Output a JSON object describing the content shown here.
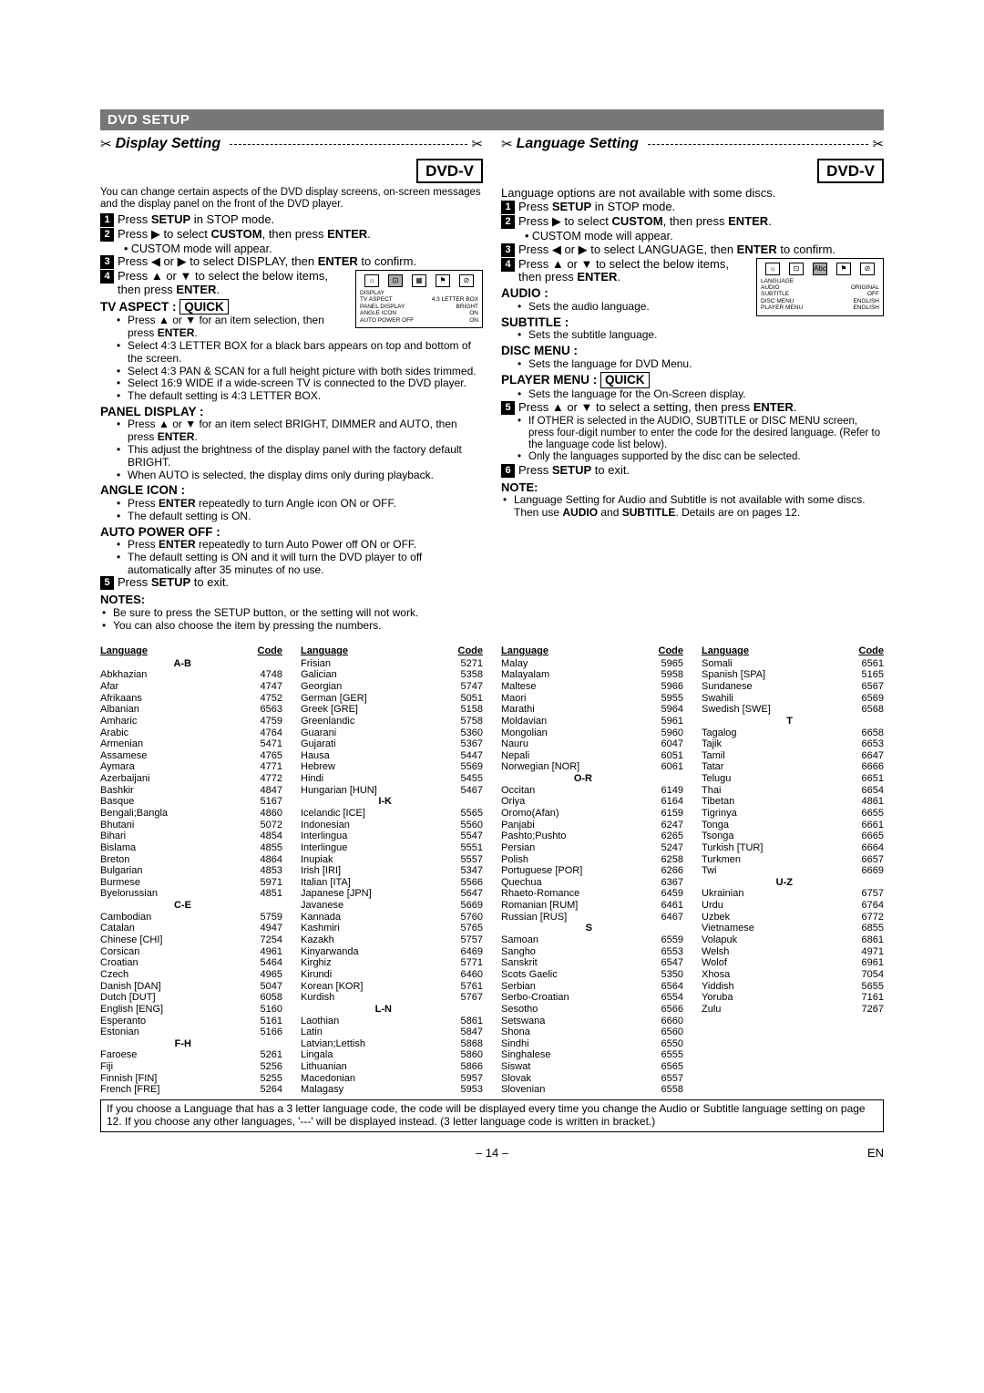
{
  "header": "DVD SETUP",
  "left": {
    "title": "Display Setting",
    "badge": "DVD-V",
    "intro": "You can change certain aspects of the DVD display screens, on-screen messages and the display panel on the front of the DVD player.",
    "steps": [
      "Press <b>SETUP</b> in STOP mode.",
      "Press <span class='tri'>▶</span> to select <b>CUSTOM</b>, then press <b>ENTER</b>.",
      "Press <span class='tri'>◀</span> or <span class='tri'>▶</span> to select DISPLAY, then <b>ENTER</b> to confirm.",
      "Press <span class='tri'>▲</span> or <span class='tri'>▼</span> to select the below items, then press <b>ENTER</b>."
    ],
    "step2_sub": "• CUSTOM mode will appear.",
    "tvaspect_head": "TV ASPECT :",
    "quick": "QUICK",
    "tvaspect_items": [
      "Press <span class='tri'>▲</span> or <span class='tri'>▼</span> for an item selection, then press <b>ENTER</b>.",
      "Select 4:3 LETTER BOX for a black bars appears on top and bottom of the screen.",
      "Select 4:3 PAN & SCAN for a full height picture with both sides trimmed.",
      "Select 16:9 WIDE if a wide-screen TV is connected to the DVD player.",
      "The default setting is 4:3 LETTER BOX."
    ],
    "panel_head": "PANEL DISPLAY :",
    "panel_items": [
      "Press <span class='tri'>▲</span> or <span class='tri'>▼</span>  for an item select BRIGHT, DIMMER and AUTO, then press <b>ENTER</b>.",
      "This adjust the brightness of the display panel with the factory default BRIGHT.",
      "When AUTO is selected, the display dims only during playback."
    ],
    "angle_head": "ANGLE ICON :",
    "angle_items": [
      "Press <b>ENTER</b> repeatedly to turn Angle icon ON or OFF.",
      "The default setting is ON."
    ],
    "autopw_head": "AUTO POWER OFF :",
    "autopw_items": [
      "Press <b>ENTER</b> repeatedly to turn Auto Power off ON or OFF.",
      "The default setting is ON and it will turn the DVD player to off automatically after 35 minutes of no use."
    ],
    "step5": "Press <b>SETUP</b> to exit.",
    "notes_head": "NOTES:",
    "notes": [
      "Be sure to press the SETUP button, or the setting will not work.",
      "You can also choose the item by pressing the numbers."
    ],
    "osd": {
      "rows": [
        [
          "DISPLAY",
          ""
        ],
        [
          "TV ASPECT",
          "4:3 LETTER BOX"
        ],
        [
          "PANEL DISPLAY",
          "BRIGHT"
        ],
        [
          "ANGLE ICON",
          "ON"
        ],
        [
          "AUTO POWER OFF",
          "ON"
        ]
      ]
    }
  },
  "right": {
    "title": "Language Setting",
    "badge": "DVD-V",
    "intro": "Language options are not available with some discs.",
    "steps": [
      "Press <b>SETUP</b> in STOP mode.",
      "Press <span class='tri'>▶</span> to select <b>CUSTOM</b>, then press <b>ENTER</b>.",
      "Press <span class='tri'>◀</span> or <span class='tri'>▶</span> to select LANGUAGE, then <b>ENTER</b> to confirm.",
      "Press <span class='tri'>▲</span> or <span class='tri'>▼</span> to select the below items, then press <b>ENTER</b>."
    ],
    "step2_sub": "• CUSTOM mode will appear.",
    "audio_head": "AUDIO :",
    "audio_item": "Sets the audio language.",
    "subtitle_head": "SUBTITLE :",
    "subtitle_item": "Sets the subtitle language.",
    "disc_head": "DISC MENU :",
    "disc_item": "Sets the language for DVD Menu.",
    "player_head": "PLAYER MENU :",
    "player_item": "Sets the language for the On-Screen display.",
    "step5": "Press <span class='tri'>▲</span> or <span class='tri'>▼</span> to select a setting, then press <b>ENTER</b>.",
    "step5_subs": [
      "If OTHER is selected in the AUDIO, SUBTITLE or DISC MENU screen, press four-digit number to enter the code for the desired language. (Refer to the language code list below).",
      "Only the languages supported by the disc can be selected."
    ],
    "step6": "Press <b>SETUP</b> to exit.",
    "note_head": "NOTE:",
    "note_text": "Language Setting for Audio and Subtitle is not available with some discs. Then use <b>AUDIO</b> and <b>SUBTITLE</b>. Details are on pages 12.",
    "osd": {
      "rows": [
        [
          "LANGUAGE",
          ""
        ],
        [
          "AUDIO",
          "ORIGINAL"
        ],
        [
          "SUBTITLE",
          "OFF"
        ],
        [
          "DISC MENU",
          "ENGLISH"
        ],
        [
          "PLAYER MENU",
          "ENGLISH"
        ]
      ]
    }
  },
  "lang_table": {
    "col1": [
      {
        "g": "A-B"
      },
      {
        "l": "Abkhazian",
        "c": "4748"
      },
      {
        "l": "Afar",
        "c": "4747"
      },
      {
        "l": "Afrikaans",
        "c": "4752"
      },
      {
        "l": "Albanian",
        "c": "6563"
      },
      {
        "l": "Amharic",
        "c": "4759"
      },
      {
        "l": "Arabic",
        "c": "4764"
      },
      {
        "l": "Armenian",
        "c": "5471"
      },
      {
        "l": "Assamese",
        "c": "4765"
      },
      {
        "l": "Aymara",
        "c": "4771"
      },
      {
        "l": "Azerbaijani",
        "c": "4772"
      },
      {
        "l": "Bashkir",
        "c": "4847"
      },
      {
        "l": "Basque",
        "c": "5167"
      },
      {
        "l": "Bengali;Bangla",
        "c": "4860"
      },
      {
        "l": "Bhutani",
        "c": "5072"
      },
      {
        "l": "Bihari",
        "c": "4854"
      },
      {
        "l": "Bislama",
        "c": "4855"
      },
      {
        "l": "Breton",
        "c": "4864"
      },
      {
        "l": "Bulgarian",
        "c": "4853"
      },
      {
        "l": "Burmese",
        "c": "5971"
      },
      {
        "l": "Byelorussian",
        "c": "4851"
      },
      {
        "g": "C-E"
      },
      {
        "l": "Cambodian",
        "c": "5759"
      },
      {
        "l": "Catalan",
        "c": "4947"
      },
      {
        "l": "Chinese [CHI]",
        "c": "7254"
      },
      {
        "l": "Corsican",
        "c": "4961"
      },
      {
        "l": "Croatian",
        "c": "5464"
      },
      {
        "l": "Czech",
        "c": "4965"
      },
      {
        "l": "Danish [DAN]",
        "c": "5047"
      },
      {
        "l": "Dutch [DUT]",
        "c": "6058"
      },
      {
        "l": "English [ENG]",
        "c": "5160"
      },
      {
        "l": "Esperanto",
        "c": "5161"
      },
      {
        "l": "Estonian",
        "c": "5166"
      },
      {
        "g": "F-H"
      },
      {
        "l": "Faroese",
        "c": "5261"
      },
      {
        "l": "Fiji",
        "c": "5256"
      },
      {
        "l": "Finnish [FIN]",
        "c": "5255"
      },
      {
        "l": "French [FRE]",
        "c": "5264"
      }
    ],
    "col2": [
      {
        "l": "Frisian",
        "c": "5271"
      },
      {
        "l": "Galician",
        "c": "5358"
      },
      {
        "l": "Georgian",
        "c": "5747"
      },
      {
        "l": "German [GER]",
        "c": "5051"
      },
      {
        "l": "Greek [GRE]",
        "c": "5158"
      },
      {
        "l": "Greenlandic",
        "c": "5758"
      },
      {
        "l": "Guarani",
        "c": "5360"
      },
      {
        "l": "Gujarati",
        "c": "5367"
      },
      {
        "l": "Hausa",
        "c": "5447"
      },
      {
        "l": "Hebrew",
        "c": "5569"
      },
      {
        "l": "Hindi",
        "c": "5455"
      },
      {
        "l": "Hungarian [HUN]",
        "c": "5467"
      },
      {
        "g": "I-K"
      },
      {
        "l": "Icelandic [ICE]",
        "c": "5565"
      },
      {
        "l": "Indonesian",
        "c": "5560"
      },
      {
        "l": "Interlingua",
        "c": "5547"
      },
      {
        "l": "Interlingue",
        "c": "5551"
      },
      {
        "l": "Inupiak",
        "c": "5557"
      },
      {
        "l": "Irish [IRI]",
        "c": "5347"
      },
      {
        "l": "Italian [ITA]",
        "c": "5566"
      },
      {
        "l": "Japanese [JPN]",
        "c": "5647"
      },
      {
        "l": "Javanese",
        "c": "5669"
      },
      {
        "l": "Kannada",
        "c": "5760"
      },
      {
        "l": "Kashmiri",
        "c": "5765"
      },
      {
        "l": "Kazakh",
        "c": "5757"
      },
      {
        "l": "Kinyarwanda",
        "c": "6469"
      },
      {
        "l": "Kirghiz",
        "c": "5771"
      },
      {
        "l": "Kirundi",
        "c": "6460"
      },
      {
        "l": "Korean [KOR]",
        "c": "5761"
      },
      {
        "l": "Kurdish",
        "c": "5767"
      },
      {
        "g": "L-N"
      },
      {
        "l": "Laothian",
        "c": "5861"
      },
      {
        "l": "Latin",
        "c": "5847"
      },
      {
        "l": "Latvian;Lettish",
        "c": "5868"
      },
      {
        "l": "Lingala",
        "c": "5860"
      },
      {
        "l": "Lithuanian",
        "c": "5866"
      },
      {
        "l": "Macedonian",
        "c": "5957"
      },
      {
        "l": "Malagasy",
        "c": "5953"
      }
    ],
    "col3": [
      {
        "l": "Malay",
        "c": "5965"
      },
      {
        "l": "Malayalam",
        "c": "5958"
      },
      {
        "l": "Maltese",
        "c": "5966"
      },
      {
        "l": "Maori",
        "c": "5955"
      },
      {
        "l": "Marathi",
        "c": "5964"
      },
      {
        "l": "Moldavian",
        "c": "5961"
      },
      {
        "l": "Mongolian",
        "c": "5960"
      },
      {
        "l": "Nauru",
        "c": "6047"
      },
      {
        "l": "Nepali",
        "c": "6051"
      },
      {
        "l": "Norwegian [NOR]",
        "c": "6061"
      },
      {
        "g": "O-R"
      },
      {
        "l": "Occitan",
        "c": "6149"
      },
      {
        "l": "Oriya",
        "c": "6164"
      },
      {
        "l": "Oromo(Afan)",
        "c": "6159"
      },
      {
        "l": "Panjabi",
        "c": "6247"
      },
      {
        "l": "Pashto;Pushto",
        "c": "6265"
      },
      {
        "l": "Persian",
        "c": "5247"
      },
      {
        "l": "Polish",
        "c": "6258"
      },
      {
        "l": "Portuguese [POR]",
        "c": "6266"
      },
      {
        "l": "Quechua",
        "c": "6367"
      },
      {
        "l": "Rhaeto-Romance",
        "c": "6459"
      },
      {
        "l": "Romanian [RUM]",
        "c": "6461"
      },
      {
        "l": "Russian [RUS]",
        "c": "6467"
      },
      {
        "g": "S"
      },
      {
        "l": "Samoan",
        "c": "6559"
      },
      {
        "l": "Sangho",
        "c": "6553"
      },
      {
        "l": "Sanskrit",
        "c": "6547"
      },
      {
        "l": "Scots Gaelic",
        "c": "5350"
      },
      {
        "l": "Serbian",
        "c": "6564"
      },
      {
        "l": "Serbo-Croatian",
        "c": "6554"
      },
      {
        "l": "Sesotho",
        "c": "6566"
      },
      {
        "l": "Setswana",
        "c": "6660"
      },
      {
        "l": "Shona",
        "c": "6560"
      },
      {
        "l": "Sindhi",
        "c": "6550"
      },
      {
        "l": "Singhalese",
        "c": "6555"
      },
      {
        "l": "Siswat",
        "c": "6565"
      },
      {
        "l": "Slovak",
        "c": "6557"
      },
      {
        "l": "Slovenian",
        "c": "6558"
      }
    ],
    "col4": [
      {
        "l": "Somali",
        "c": "6561"
      },
      {
        "l": "Spanish [SPA]",
        "c": "5165"
      },
      {
        "l": "Sundanese",
        "c": "6567"
      },
      {
        "l": "Swahili",
        "c": "6569"
      },
      {
        "l": "Swedish [SWE]",
        "c": "6568"
      },
      {
        "g": "T"
      },
      {
        "l": "Tagalog",
        "c": "6658"
      },
      {
        "l": "Tajik",
        "c": "6653"
      },
      {
        "l": "Tamil",
        "c": "6647"
      },
      {
        "l": "Tatar",
        "c": "6666"
      },
      {
        "l": "Telugu",
        "c": "6651"
      },
      {
        "l": "Thai",
        "c": "6654"
      },
      {
        "l": "Tibetan",
        "c": "4861"
      },
      {
        "l": "Tigrinya",
        "c": "6655"
      },
      {
        "l": "Tonga",
        "c": "6661"
      },
      {
        "l": "Tsonga",
        "c": "6665"
      },
      {
        "l": "Turkish [TUR]",
        "c": "6664"
      },
      {
        "l": "Turkmen",
        "c": "6657"
      },
      {
        "l": "Twi",
        "c": "6669"
      },
      {
        "g": "U-Z"
      },
      {
        "l": "Ukrainian",
        "c": "6757"
      },
      {
        "l": "Urdu",
        "c": "6764"
      },
      {
        "l": "Uzbek",
        "c": "6772"
      },
      {
        "l": "Vietnamese",
        "c": "6855"
      },
      {
        "l": "Volapuk",
        "c": "6861"
      },
      {
        "l": "Welsh",
        "c": "4971"
      },
      {
        "l": "Wolof",
        "c": "6961"
      },
      {
        "l": "Xhosa",
        "c": "7054"
      },
      {
        "l": "Yiddish",
        "c": "5655"
      },
      {
        "l": "Yoruba",
        "c": "7161"
      },
      {
        "l": "Zulu",
        "c": "7267"
      }
    ],
    "header_lang": "Language",
    "header_code": "Code"
  },
  "footer_note": "If you choose a Language that has a 3 letter language code, the code will be displayed every time you change the Audio or Subtitle language setting on page 12. If you choose any other languages, '---' will be displayed instead. (3 letter language code is written in bracket.)",
  "page_num": "– 14 –",
  "page_en": "EN"
}
